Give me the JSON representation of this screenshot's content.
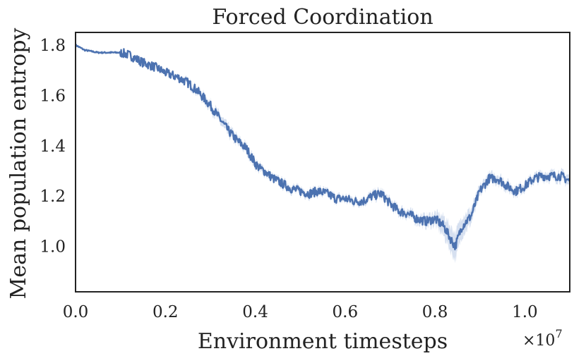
{
  "chart_data": {
    "type": "line",
    "title": "Forced Coordination",
    "xlabel": "Environment timesteps",
    "ylabel": "Mean population entropy",
    "x_multiplier": "×10",
    "x_multiplier_exp": "7",
    "xlim": [
      0.0,
      1.1
    ],
    "ylim": [
      0.82,
      1.85
    ],
    "xticks": [
      0.0,
      0.2,
      0.4,
      0.6,
      0.8,
      1.0
    ],
    "xtick_labels": [
      "0.0",
      "0.2",
      "0.4",
      "0.6",
      "0.8",
      "1.0"
    ],
    "yticks": [
      1.0,
      1.2,
      1.4,
      1.6,
      1.8
    ],
    "ytick_labels": [
      "1.0",
      "1.2",
      "1.4",
      "1.6",
      "1.8"
    ],
    "grid": false,
    "legend": "none",
    "color": "#4c72b0",
    "band_color": "#c5d3ea",
    "series": [
      {
        "x": [
          0.0,
          0.02,
          0.05,
          0.08,
          0.1,
          0.12,
          0.15,
          0.18,
          0.2,
          0.23,
          0.25,
          0.27,
          0.28,
          0.3,
          0.32,
          0.34,
          0.36,
          0.38,
          0.4,
          0.41,
          0.42,
          0.44,
          0.46,
          0.48,
          0.5,
          0.52,
          0.54,
          0.56,
          0.58,
          0.6,
          0.62,
          0.64,
          0.66,
          0.68,
          0.7,
          0.72,
          0.74,
          0.76,
          0.78,
          0.8,
          0.82,
          0.835,
          0.845,
          0.86,
          0.88,
          0.9,
          0.92,
          0.94,
          0.96,
          0.98,
          1.0,
          1.02,
          1.04,
          1.06,
          1.08,
          1.1
        ],
        "y": [
          1.8,
          1.78,
          1.77,
          1.77,
          1.77,
          1.76,
          1.73,
          1.71,
          1.69,
          1.67,
          1.65,
          1.62,
          1.6,
          1.56,
          1.51,
          1.46,
          1.42,
          1.39,
          1.33,
          1.31,
          1.3,
          1.27,
          1.25,
          1.23,
          1.22,
          1.21,
          1.22,
          1.21,
          1.19,
          1.19,
          1.18,
          1.18,
          1.2,
          1.21,
          1.17,
          1.14,
          1.13,
          1.11,
          1.1,
          1.11,
          1.08,
          1.03,
          1.0,
          1.08,
          1.12,
          1.22,
          1.27,
          1.27,
          1.24,
          1.22,
          1.24,
          1.27,
          1.28,
          1.28,
          1.28,
          1.26
        ],
        "band_halfwidth": [
          0.003,
          0.003,
          0.004,
          0.004,
          0.004,
          0.004,
          0.005,
          0.006,
          0.006,
          0.008,
          0.01,
          0.012,
          0.014,
          0.016,
          0.018,
          0.018,
          0.017,
          0.016,
          0.016,
          0.014,
          0.012,
          0.012,
          0.012,
          0.013,
          0.013,
          0.013,
          0.013,
          0.012,
          0.012,
          0.012,
          0.012,
          0.013,
          0.015,
          0.016,
          0.016,
          0.016,
          0.016,
          0.018,
          0.02,
          0.025,
          0.04,
          0.05,
          0.055,
          0.04,
          0.03,
          0.02,
          0.018,
          0.018,
          0.018,
          0.016,
          0.015,
          0.016,
          0.016,
          0.017,
          0.018,
          0.02
        ]
      }
    ]
  }
}
